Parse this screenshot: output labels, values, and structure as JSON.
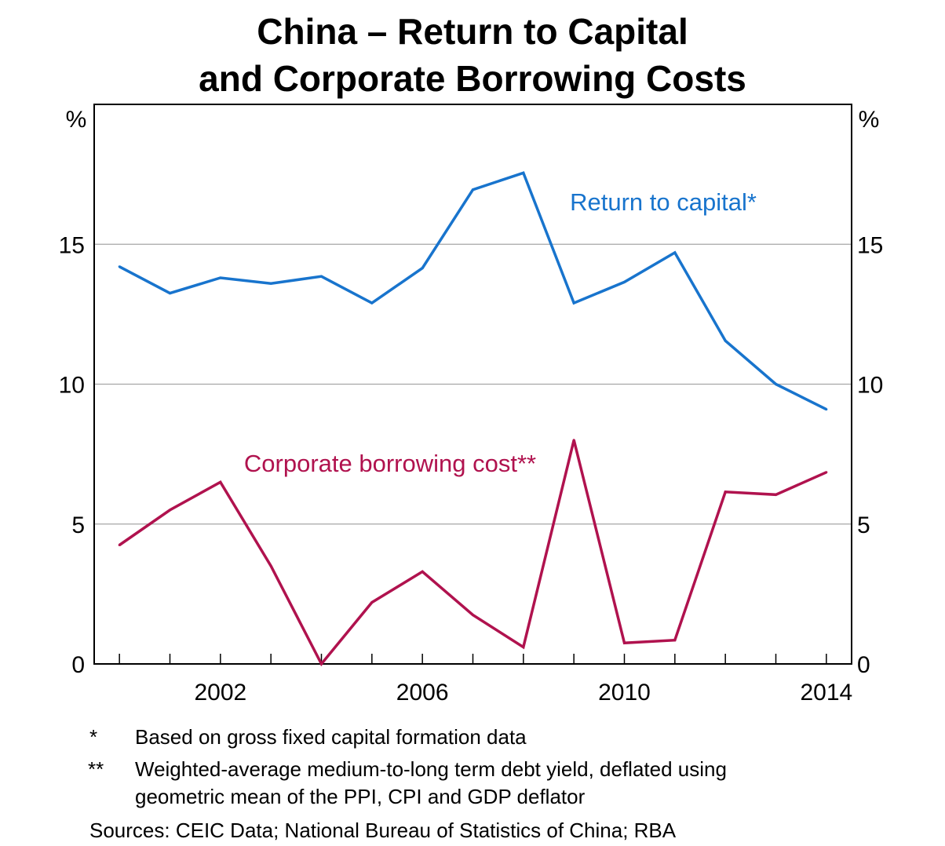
{
  "title_line1": "China – Return to Capital",
  "title_line2": "and Corporate Borrowing Costs",
  "chart_data": {
    "type": "line",
    "x": [
      2000,
      2001,
      2002,
      2003,
      2004,
      2005,
      2006,
      2007,
      2008,
      2009,
      2010,
      2011,
      2012,
      2013,
      2014
    ],
    "series": [
      {
        "name": "Return to capital*",
        "color": "#1874cd",
        "values": [
          14.2,
          13.25,
          13.8,
          13.6,
          13.85,
          12.9,
          14.15,
          16.95,
          17.55,
          12.9,
          13.65,
          14.7,
          11.55,
          10.0,
          9.1
        ]
      },
      {
        "name": "Corporate borrowing cost**",
        "color": "#b0124e",
        "values": [
          4.25,
          5.5,
          6.5,
          3.5,
          0.0,
          2.2,
          3.3,
          1.75,
          0.6,
          8.0,
          0.75,
          0.85,
          6.15,
          6.05,
          6.85
        ]
      }
    ],
    "x_ticks": [
      "2002",
      "2006",
      "2010",
      "2014"
    ],
    "x_tick_values": [
      2002,
      2006,
      2010,
      2014
    ],
    "y_ticks": [
      "0",
      "5",
      "10",
      "15"
    ],
    "y_tick_values": [
      0,
      5,
      10,
      15
    ],
    "ylim": [
      0,
      20
    ],
    "xlim": [
      1999.5,
      2014.5
    ],
    "ylabel_left": "%",
    "ylabel_right": "%",
    "grid": true
  },
  "footnotes": [
    {
      "mark": "*",
      "text": "Based on gross fixed capital formation data"
    },
    {
      "mark": "**",
      "text_line1": "Weighted-average medium-to-long term debt yield, deflated using",
      "text_line2": "geometric mean of the PPI, CPI and GDP deflator"
    }
  ],
  "sources": "Sources:  CEIC Data; National Bureau of Statistics of China; RBA"
}
